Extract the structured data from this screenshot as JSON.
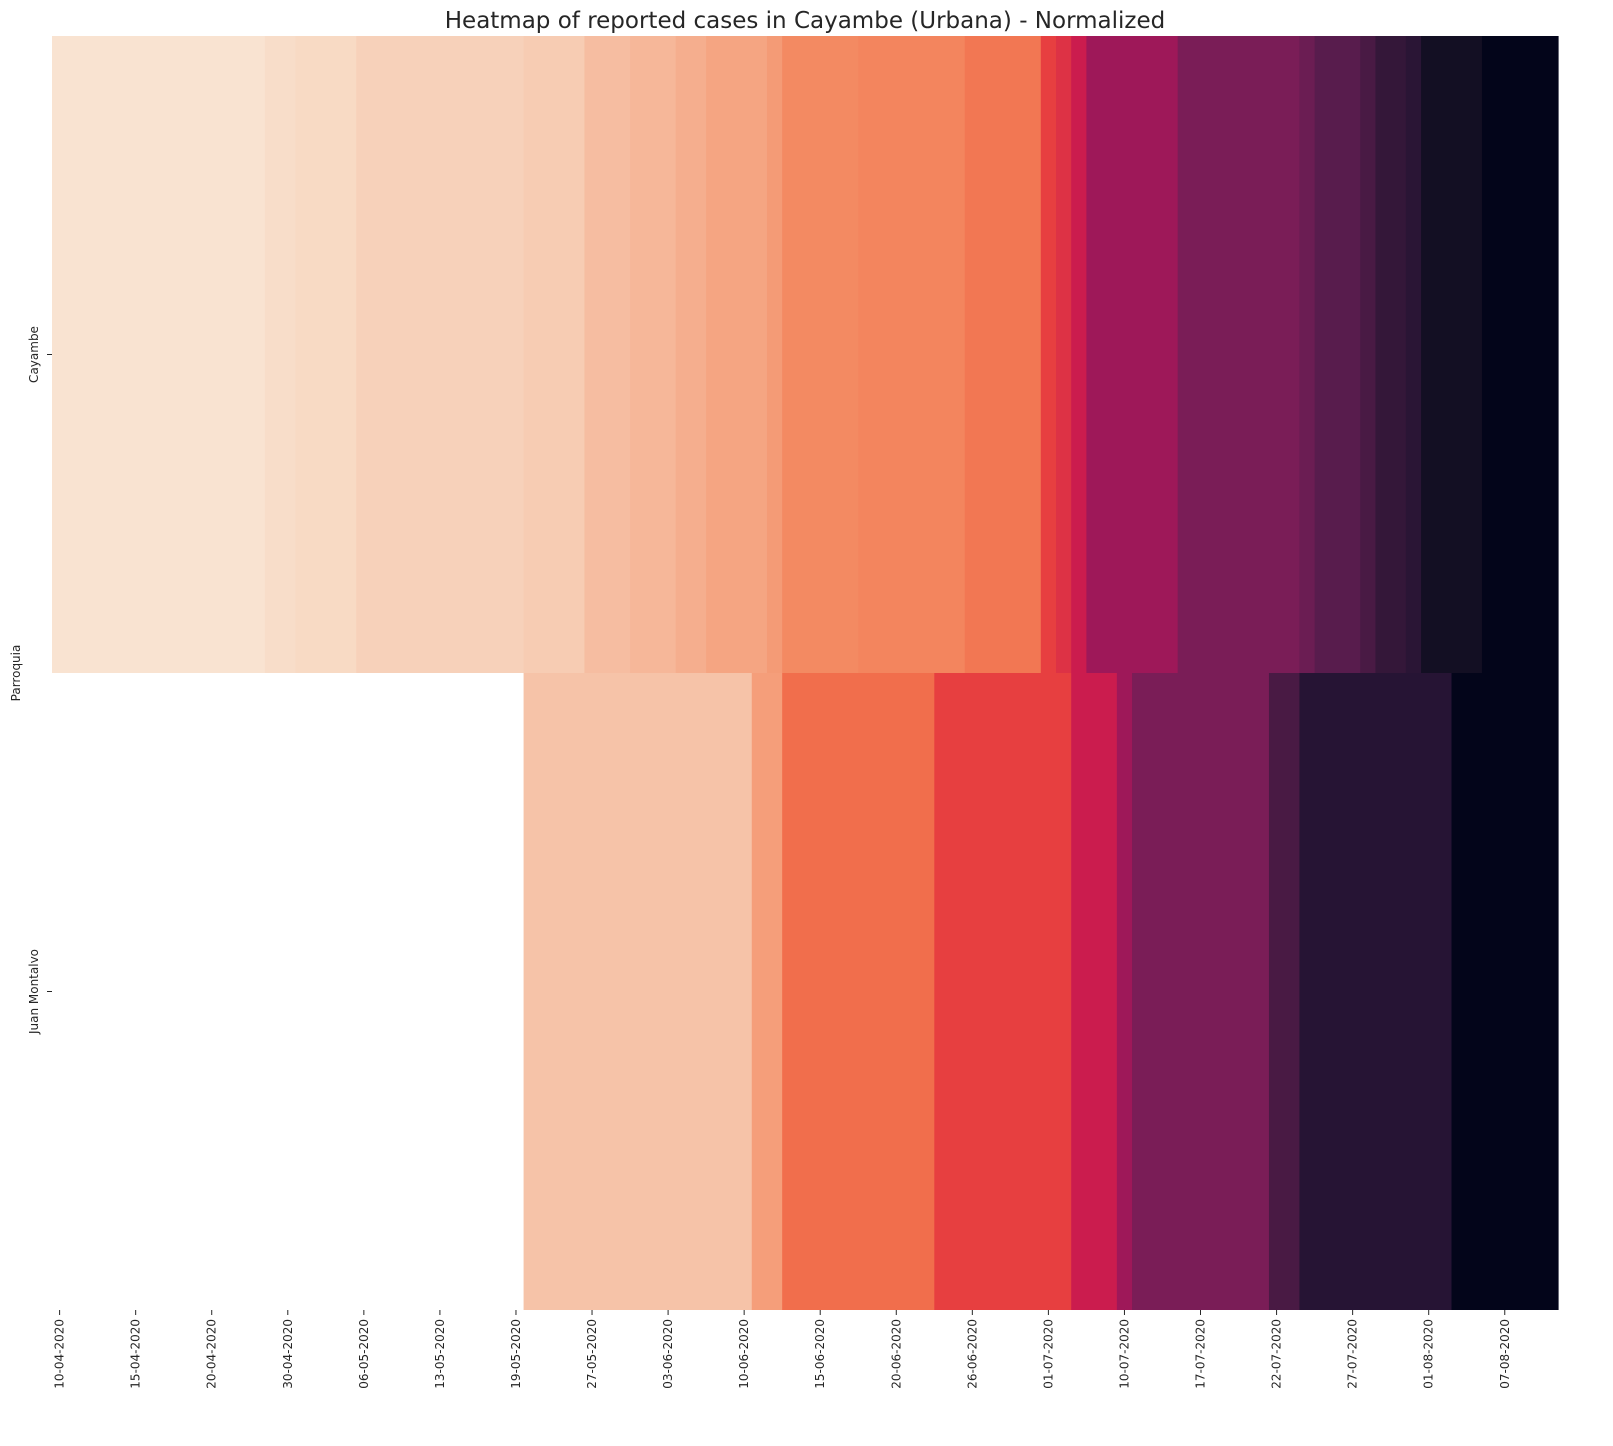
{
  "chart_data": {
    "type": "heatmap",
    "title": "Heatmap of reported cases in Cayambe (Urbana) - Normalized",
    "xlabel": "",
    "ylabel": "Parroquia",
    "colormap": "rocket_r",
    "color_range": [
      0,
      1
    ],
    "colorbar": false,
    "rows": [
      "Cayambe",
      "Juan Montalvo"
    ],
    "x_tick_labels": [
      "10-04-2020",
      "15-04-2020",
      "20-04-2020",
      "30-04-2020",
      "06-05-2020",
      "13-05-2020",
      "19-05-2020",
      "27-05-2020",
      "03-06-2020",
      "10-06-2020",
      "15-06-2020",
      "20-06-2020",
      "26-06-2020",
      "01-07-2020",
      "10-07-2020",
      "17-07-2020",
      "22-07-2020",
      "27-07-2020",
      "01-08-2020",
      "07-08-2020"
    ],
    "x_tick_positions": [
      0,
      5,
      10,
      15,
      20,
      25,
      30,
      35,
      40,
      45,
      50,
      55,
      60,
      65,
      70,
      75,
      80,
      85,
      90,
      95
    ],
    "n_columns": 99,
    "series": [
      {
        "name": "Cayambe",
        "segments": [
          {
            "start": 0,
            "end": 14,
            "value": 0.05
          },
          {
            "start": 14,
            "end": 16,
            "value": 0.08
          },
          {
            "start": 16,
            "end": 20,
            "value": 0.1
          },
          {
            "start": 20,
            "end": 31,
            "value": 0.13
          },
          {
            "start": 31,
            "end": 35,
            "value": 0.15
          },
          {
            "start": 35,
            "end": 38,
            "value": 0.2
          },
          {
            "start": 38,
            "end": 41,
            "value": 0.22
          },
          {
            "start": 41,
            "end": 43,
            "value": 0.25
          },
          {
            "start": 43,
            "end": 47,
            "value": 0.28
          },
          {
            "start": 47,
            "end": 48,
            "value": 0.31
          },
          {
            "start": 48,
            "end": 53,
            "value": 0.36
          },
          {
            "start": 53,
            "end": 60,
            "value": 0.37
          },
          {
            "start": 60,
            "end": 65,
            "value": 0.4
          },
          {
            "start": 65,
            "end": 66,
            "value": 0.52
          },
          {
            "start": 66,
            "end": 67,
            "value": 0.55
          },
          {
            "start": 67,
            "end": 68,
            "value": 0.6
          },
          {
            "start": 68,
            "end": 74,
            "value": 0.66
          },
          {
            "start": 74,
            "end": 82,
            "value": 0.72
          },
          {
            "start": 82,
            "end": 83,
            "value": 0.75
          },
          {
            "start": 83,
            "end": 86,
            "value": 0.79
          },
          {
            "start": 86,
            "end": 87,
            "value": 0.82
          },
          {
            "start": 87,
            "end": 89,
            "value": 0.86
          },
          {
            "start": 89,
            "end": 90,
            "value": 0.89
          },
          {
            "start": 90,
            "end": 94,
            "value": 0.94
          },
          {
            "start": 94,
            "end": 99,
            "value": 1.0
          }
        ]
      },
      {
        "name": "Juan Montalvo",
        "segments": [
          {
            "start": 31,
            "end": 46,
            "value": 0.18
          },
          {
            "start": 46,
            "end": 48,
            "value": 0.3
          },
          {
            "start": 48,
            "end": 58,
            "value": 0.42
          },
          {
            "start": 58,
            "end": 67,
            "value": 0.52
          },
          {
            "start": 67,
            "end": 70,
            "value": 0.6
          },
          {
            "start": 70,
            "end": 71,
            "value": 0.66
          },
          {
            "start": 71,
            "end": 80,
            "value": 0.72
          },
          {
            "start": 80,
            "end": 82,
            "value": 0.82
          },
          {
            "start": 82,
            "end": 92,
            "value": 0.9
          },
          {
            "start": 92,
            "end": 99,
            "value": 1.0
          }
        ]
      }
    ]
  }
}
